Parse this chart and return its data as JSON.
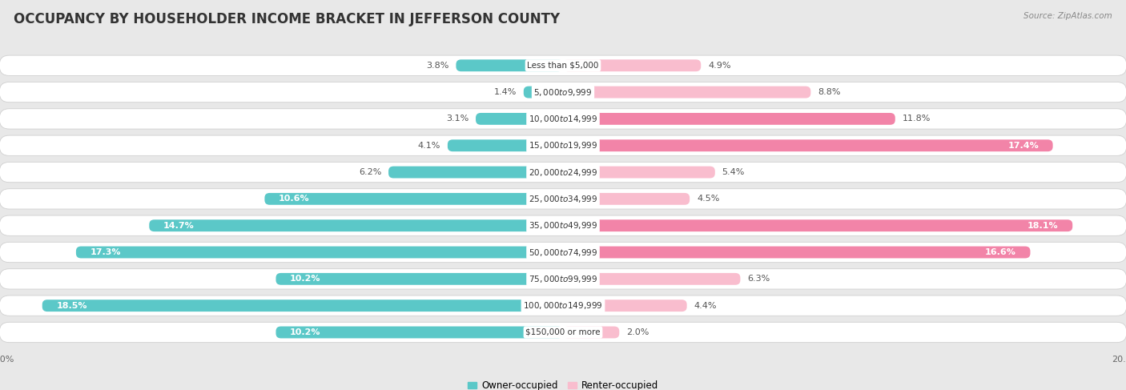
{
  "title": "OCCUPANCY BY HOUSEHOLDER INCOME BRACKET IN JEFFERSON COUNTY",
  "source": "Source: ZipAtlas.com",
  "categories": [
    "Less than $5,000",
    "$5,000 to $9,999",
    "$10,000 to $14,999",
    "$15,000 to $19,999",
    "$20,000 to $24,999",
    "$25,000 to $34,999",
    "$35,000 to $49,999",
    "$50,000 to $74,999",
    "$75,000 to $99,999",
    "$100,000 to $149,999",
    "$150,000 or more"
  ],
  "owner_values": [
    3.8,
    1.4,
    3.1,
    4.1,
    6.2,
    10.6,
    14.7,
    17.3,
    10.2,
    18.5,
    10.2
  ],
  "renter_values": [
    4.9,
    8.8,
    11.8,
    17.4,
    5.4,
    4.5,
    18.1,
    16.6,
    6.3,
    4.4,
    2.0
  ],
  "owner_color": "#5BC8C8",
  "renter_color": "#F284A8",
  "renter_color_light": "#F9BDCE",
  "background_color": "#e8e8e8",
  "bar_bg_color": "#f5f5f5",
  "xlim": 20.0,
  "title_fontsize": 12,
  "label_fontsize": 8,
  "cat_fontsize": 7.5,
  "tick_fontsize": 8,
  "legend_fontsize": 8.5
}
